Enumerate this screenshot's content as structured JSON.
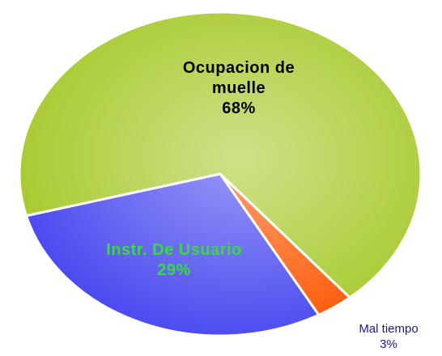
{
  "chart_data": {
    "type": "pie",
    "categories": [
      "Ocupacion de muelle",
      "Mal tiempo",
      "Instr. De Usuario"
    ],
    "values": [
      68,
      3,
      29
    ],
    "value_labels": [
      "68%",
      "3%",
      "29%"
    ],
    "colors": [
      "#a6c92a",
      "#ff5500",
      "#4646f0"
    ]
  }
}
